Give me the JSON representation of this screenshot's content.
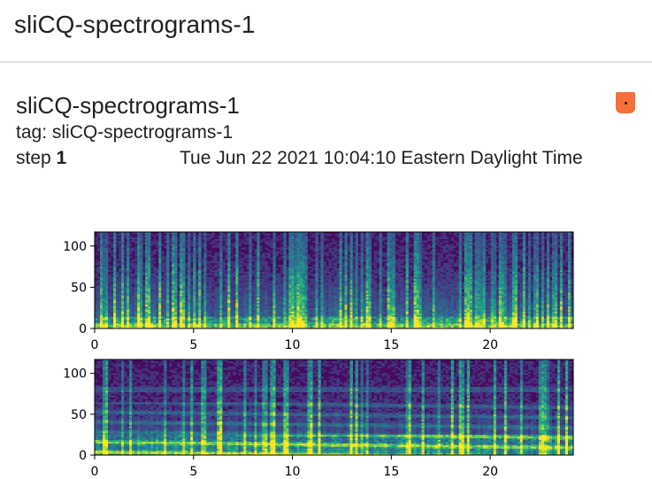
{
  "header": {
    "title": "sliCQ-spectrograms-1"
  },
  "card": {
    "title": "sliCQ-spectrograms-1",
    "tag_text": "tag: sliCQ-spectrograms-1",
    "step_label": "step ",
    "step_value": "1",
    "timestamp": "Tue Jun 22 2021 10:04:10 Eastern Daylight Time"
  },
  "badge": {
    "icon": "dot-icon",
    "color": "#f4703a"
  },
  "chart_data": [
    {
      "type": "heatmap",
      "title": "",
      "xlabel": "",
      "ylabel": "",
      "xlim": [
        0,
        24.2
      ],
      "ylim": [
        0,
        117
      ],
      "xticks": [
        "0",
        "5",
        "10",
        "15",
        "20"
      ],
      "xtick_values": [
        0,
        5,
        10,
        15,
        20
      ],
      "yticks": [
        "0",
        "50",
        "100"
      ],
      "ytick_values": [
        0,
        50,
        100
      ],
      "colormap": "viridis",
      "grid": false
    },
    {
      "type": "heatmap",
      "title": "",
      "xlabel": "",
      "ylabel": "",
      "xlim": [
        0,
        24.2
      ],
      "ylim": [
        0,
        117
      ],
      "xticks": [
        "0",
        "5",
        "10",
        "15",
        "20"
      ],
      "xtick_values": [
        0,
        5,
        10,
        15,
        20
      ],
      "yticks": [
        "0",
        "50",
        "100"
      ],
      "ytick_values": [
        0,
        50,
        100
      ],
      "colormap": "viridis",
      "grid": false
    }
  ]
}
